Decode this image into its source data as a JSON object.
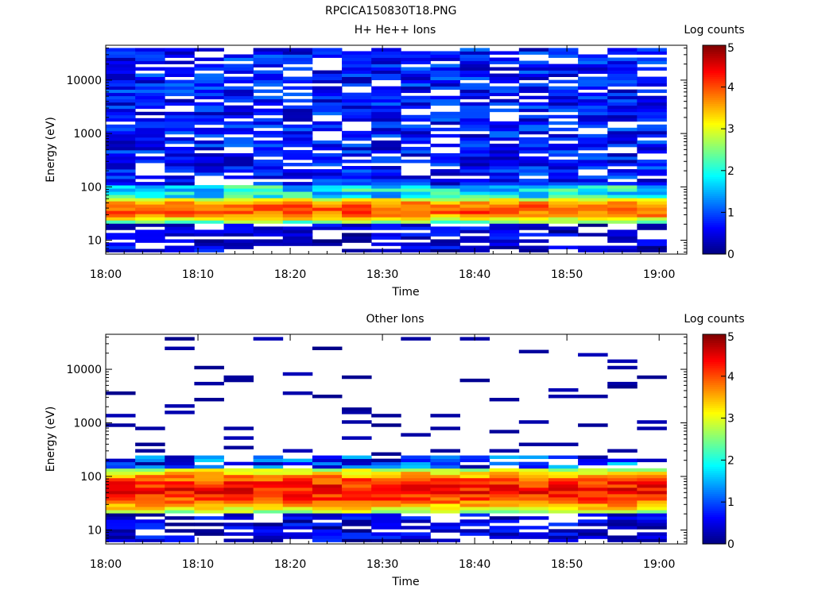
{
  "title": "RPCICA150830T18.PNG",
  "colors": {
    "background": "#ffffff",
    "axis": "#000000",
    "colormap_stops": [
      "#00007f",
      "#0000ff",
      "#007fff",
      "#00ffff",
      "#7fff7f",
      "#ffff00",
      "#ff7f00",
      "#ff0000",
      "#7f0000"
    ]
  },
  "chart_data": [
    {
      "type": "heatmap",
      "title": "H+ He++ Ions",
      "xlabel": "Time",
      "ylabel": "Energy (eV)",
      "yscale": "log",
      "ylim": [
        5.5,
        45000
      ],
      "xlim": [
        "18:00",
        "19:03"
      ],
      "x_ticks": [
        "18:00",
        "18:10",
        "18:20",
        "18:30",
        "18:40",
        "18:50",
        "19:00"
      ],
      "y_ticks": [
        {
          "value": 10,
          "label": "10"
        },
        {
          "value": 100,
          "label": "100"
        },
        {
          "value": 1000,
          "label": "1000"
        },
        {
          "value": 10000,
          "label": "10000"
        }
      ],
      "colorbar": {
        "label": "Log counts",
        "range": [
          0,
          5
        ],
        "ticks": [
          "0",
          "1",
          "2",
          "3",
          "4",
          "5"
        ]
      },
      "time_bin_minutes": 3.2,
      "bins_count": 19,
      "energy_range": [
        6,
        40000
      ],
      "peak_band": {
        "energy_low": 22,
        "energy_high": 65,
        "log_counts": 4.0
      },
      "description_values": {
        "background_high_energy_log_counts": 0.6,
        "low_energy_log_counts": 0.3
      }
    },
    {
      "type": "heatmap",
      "title": "Other Ions",
      "xlabel": "Time",
      "ylabel": "Energy (eV)",
      "yscale": "log",
      "ylim": [
        5.5,
        45000
      ],
      "xlim": [
        "18:00",
        "19:03"
      ],
      "x_ticks": [
        "18:00",
        "18:10",
        "18:20",
        "18:30",
        "18:40",
        "18:50",
        "19:00"
      ],
      "y_ticks": [
        {
          "value": 10,
          "label": "10"
        },
        {
          "value": 100,
          "label": "100"
        },
        {
          "value": 1000,
          "label": "1000"
        },
        {
          "value": 10000,
          "label": "10000"
        }
      ],
      "colorbar": {
        "label": "Log counts",
        "range": [
          0,
          5
        ],
        "ticks": [
          "0",
          "1",
          "2",
          "3",
          "4",
          "5"
        ]
      },
      "time_bin_minutes": 3.2,
      "bins_count": 19,
      "energy_range": [
        6,
        40000
      ],
      "peak_band": {
        "energy_low": 22,
        "energy_high": 140,
        "log_counts": 4.3
      },
      "description_values": {
        "sparse_high_energy_log_counts": 0.1,
        "low_energy_log_counts": 0.4
      }
    }
  ]
}
